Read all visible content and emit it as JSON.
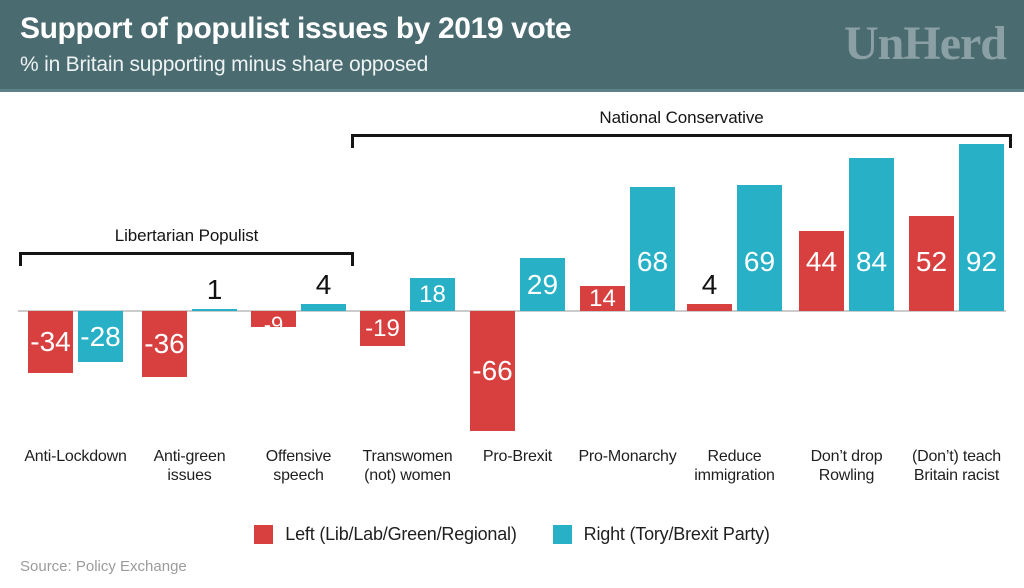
{
  "header": {
    "title": "Support of populist issues by 2019 vote",
    "subtitle": "% in Britain supporting minus share opposed",
    "logo": "UnHerd"
  },
  "chart_data": {
    "type": "bar",
    "title": "Support of populist issues by 2019 vote",
    "subtitle": "% in Britain supporting minus share opposed",
    "categories": [
      "Anti-Lockdown",
      "Anti-green\nissues",
      "Offensive\nspeech",
      "Transwomen\n(not) women",
      "Pro-Brexit",
      "Pro-Monarchy",
      "Reduce\nimmigration",
      "Don’t drop\nRowling",
      "(Don’t) teach\nBritain racist"
    ],
    "series": [
      {
        "name": "Left (Lib/Lab/Green/Regional)",
        "color": "#d8403f",
        "values": [
          -34,
          -36,
          -9,
          -19,
          -66,
          14,
          4,
          44,
          52
        ]
      },
      {
        "name": "Right (Tory/Brexit Party)",
        "color": "#28b0c7",
        "values": [
          -28,
          1,
          4,
          18,
          29,
          68,
          69,
          84,
          92
        ]
      }
    ],
    "brackets": [
      {
        "label": "Libertarian Populist",
        "from": 0,
        "to": 2
      },
      {
        "label": "National Conservative",
        "from": 3,
        "to": 8
      }
    ],
    "baseline": 0,
    "ylim": [
      -70,
      95
    ],
    "grid": false,
    "legend_position": "bottom"
  },
  "colors": {
    "header_bg": "#4a6b70",
    "header_edge": "#5d8286",
    "logo": "#8aa0a4",
    "left_series": "#d8403f",
    "right_series": "#28b0c7",
    "baseline": "#cccccc",
    "text": "#1f1f1f",
    "muted": "#9b9b9b"
  },
  "source": "Source: Policy Exchange"
}
